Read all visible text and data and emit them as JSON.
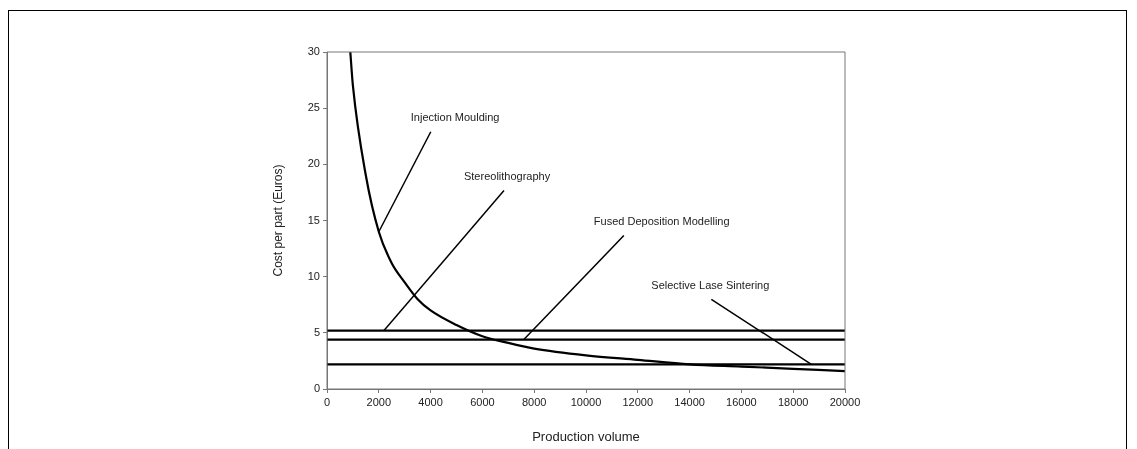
{
  "chart_data": {
    "type": "line",
    "xlabel": "Production volume",
    "ylabel": "Cost per part (Euros)",
    "xlim": [
      0,
      20000
    ],
    "xticks": [
      0,
      2000,
      4000,
      6000,
      8000,
      10000,
      12000,
      14000,
      16000,
      18000,
      20000
    ],
    "ylim": [
      0,
      30
    ],
    "yticks": [
      0,
      5,
      10,
      15,
      20,
      25,
      30
    ],
    "marker": "none",
    "series": [
      {
        "color": "#000000",
        "x": [
          900,
          1000,
          1500,
          2000,
          2500,
          3000,
          3500,
          4000,
          5000,
          6000,
          7000,
          8000,
          10000,
          12000,
          14000,
          16000,
          18000,
          20000
        ],
        "values": [
          30,
          27,
          19,
          14,
          11.2,
          9.5,
          8,
          7,
          5.7,
          4.7,
          4.1,
          3.6,
          3,
          2.6,
          2.2,
          2,
          1.8,
          1.6
        ]
      },
      {
        "color": "#000000",
        "x": [
          0,
          20000
        ],
        "values": [
          5.2,
          5.2
        ]
      },
      {
        "color": "#000000",
        "x": [
          0,
          20000
        ],
        "values": [
          4.4,
          4.4
        ]
      },
      {
        "color": "#000000",
        "x": [
          0,
          20000
        ],
        "values": [
          2.2,
          2.2
        ]
      }
    ],
    "annotations": [
      {
        "text": "Injection Moulding",
        "x": 2000,
        "y": 14
      },
      {
        "text": "Stereolithography",
        "x": 2200,
        "y": 5.2
      },
      {
        "text": "Fused Deposition Modelling",
        "x": 7600,
        "y": 4.4
      },
      {
        "text": "Selective Lase Sintering",
        "x": 18700,
        "y": 2.2
      }
    ]
  }
}
